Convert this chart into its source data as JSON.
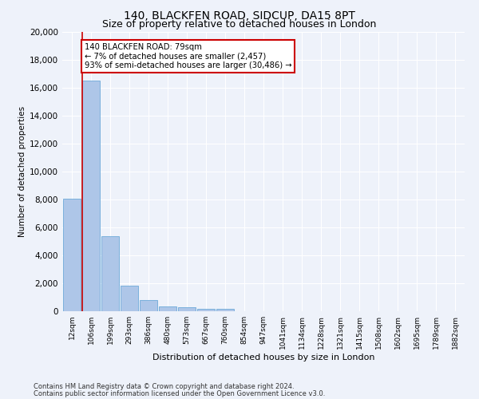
{
  "title": "140, BLACKFEN ROAD, SIDCUP, DA15 8PT",
  "subtitle": "Size of property relative to detached houses in London",
  "xlabel": "Distribution of detached houses by size in London",
  "ylabel": "Number of detached properties",
  "categories": [
    "12sqm",
    "106sqm",
    "199sqm",
    "293sqm",
    "386sqm",
    "480sqm",
    "573sqm",
    "667sqm",
    "760sqm",
    "854sqm",
    "947sqm",
    "1041sqm",
    "1134sqm",
    "1228sqm",
    "1321sqm",
    "1415sqm",
    "1508sqm",
    "1602sqm",
    "1695sqm",
    "1789sqm",
    "1882sqm"
  ],
  "values": [
    8050,
    16500,
    5350,
    1850,
    800,
    330,
    270,
    200,
    200,
    0,
    0,
    0,
    0,
    0,
    0,
    0,
    0,
    0,
    0,
    0,
    0
  ],
  "bar_color": "#aec6e8",
  "bar_edge_color": "#5a9fd4",
  "vline_color": "#cc0000",
  "annotation_text": "140 BLACKFEN ROAD: 79sqm\n← 7% of detached houses are smaller (2,457)\n93% of semi-detached houses are larger (30,486) →",
  "annotation_box_color": "#ffffff",
  "annotation_box_edge_color": "#cc0000",
  "ylim": [
    0,
    20000
  ],
  "yticks": [
    0,
    2000,
    4000,
    6000,
    8000,
    10000,
    12000,
    14000,
    16000,
    18000,
    20000
  ],
  "footnote1": "Contains HM Land Registry data © Crown copyright and database right 2024.",
  "footnote2": "Contains public sector information licensed under the Open Government Licence v3.0.",
  "title_fontsize": 10,
  "subtitle_fontsize": 9,
  "background_color": "#eef2fa",
  "plot_bg_color": "#eef2fa"
}
